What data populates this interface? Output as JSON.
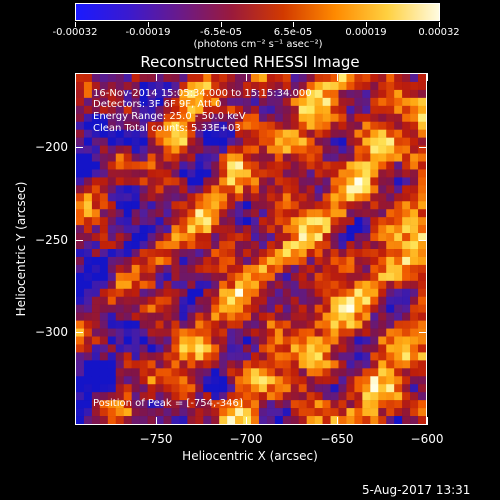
{
  "colorbar": {
    "tick_labels": [
      "-0.00032",
      "-0.00019",
      "-6.5e-05",
      "6.5e-05",
      "0.00019",
      "0.00032"
    ],
    "units": "(photons cm⁻² s⁻¹ asec⁻²)",
    "colors": [
      "#1a1aff",
      "#3a1ad0",
      "#6a1a8a",
      "#9a1a3c",
      "#d23a00",
      "#ff8a00",
      "#ffd040",
      "#fffbe0"
    ]
  },
  "title": "Reconstructed RHESSI Image",
  "annotations": {
    "time_range": "16-Nov-2014 15:05:34.000 to 15:15:34.000",
    "detectors": "Detectors: 3F 6F 9F, Att 0",
    "energy": "Energy Range: 25.0 - 50.0 keV",
    "clean": "Clean     Total counts: 5.33E+03",
    "peak": "Position of Peak = [-754,-346]"
  },
  "chart_data": {
    "type": "heatmap",
    "title": "Reconstructed RHESSI Image",
    "xlabel": "Heliocentric X (arcsec)",
    "ylabel": "Heliocentric Y (arcsec)",
    "xlim": [
      -795,
      -600
    ],
    "ylim": [
      -350,
      -160
    ],
    "x_ticks": [
      -750,
      -700,
      -650,
      -600
    ],
    "x_tick_labels": [
      "−750",
      "−700",
      "−650",
      "−600"
    ],
    "y_ticks": [
      -200,
      -250,
      -300
    ],
    "y_tick_labels": [
      "−200",
      "−250",
      "−300"
    ],
    "colorbar_range": [
      -0.00032,
      0.00032
    ],
    "peak_position": [
      -754,
      -346
    ]
  },
  "timestamp": "5-Aug-2017 13:31"
}
